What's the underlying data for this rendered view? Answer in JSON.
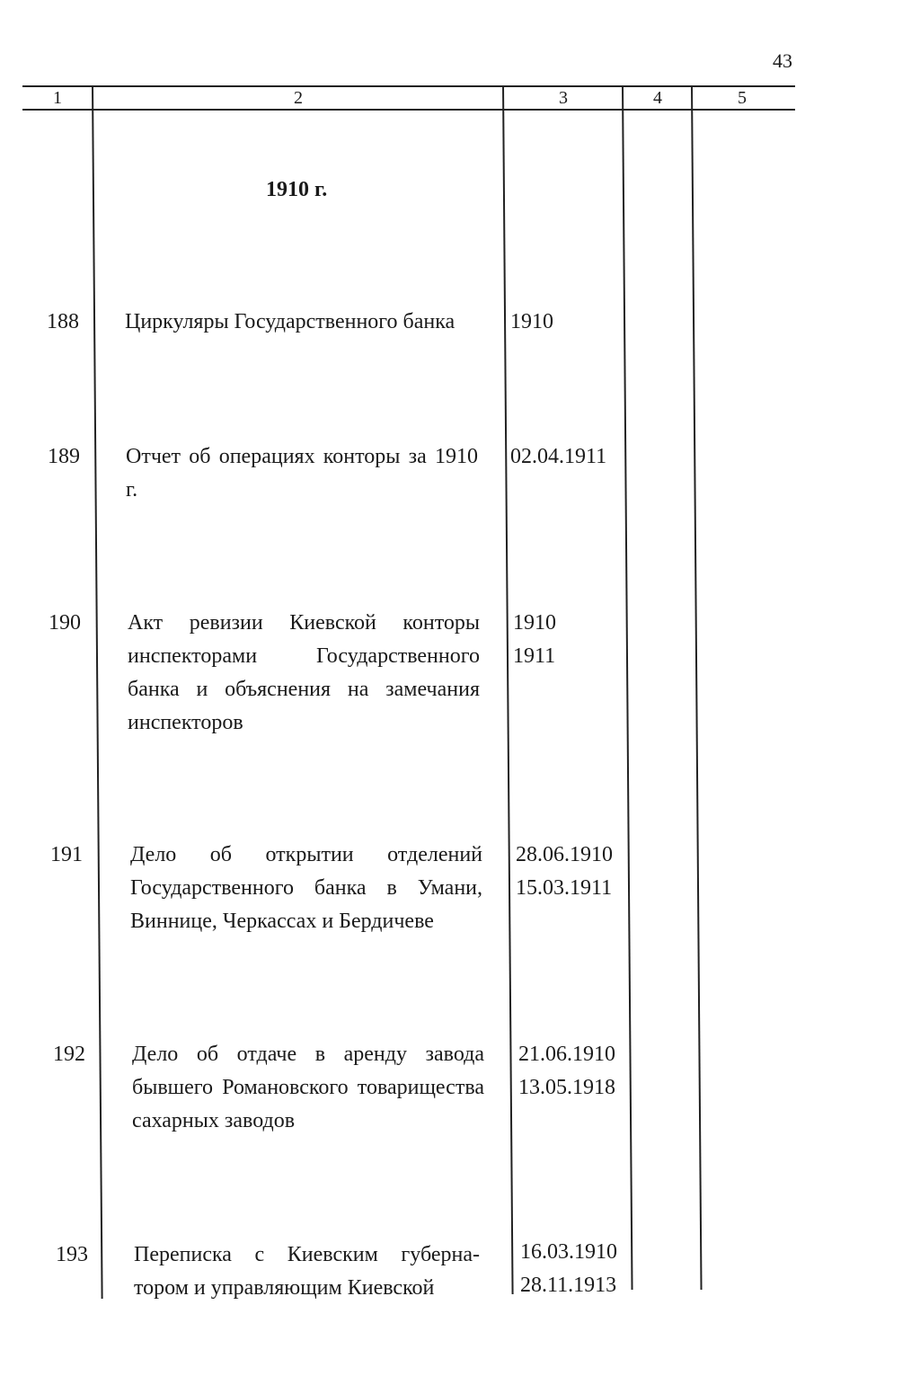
{
  "page_number": "43",
  "columns": [
    "1",
    "2",
    "3",
    "4",
    "5"
  ],
  "section_heading": "1910 г.",
  "rows": [
    {
      "num": "188",
      "title": "Циркуляры Государственного банка",
      "dates": [
        "1910"
      ]
    },
    {
      "num": "189",
      "title": "Отчет об операциях конторы за 1910 г.",
      "dates": [
        "02.04.1911"
      ]
    },
    {
      "num": "190",
      "title": "Акт ревизии Киевской конторы инспекторами Государственного банка и объяснения на замечания инспекторов",
      "dates": [
        "1910",
        "1911"
      ]
    },
    {
      "num": "191",
      "title": "Дело об открытии отделений Государственного банка в Умани, Виннице, Черкассах и Бердичеве",
      "dates": [
        "28.06.1910",
        "15.03.1911"
      ]
    },
    {
      "num": "192",
      "title": "Дело об отдаче в аренду завода бывшего Романовского товарищества сахарных заводов",
      "dates": [
        "21.06.1910",
        "13.05.1918"
      ]
    },
    {
      "num": "193",
      "title": "Переписка с Киевским губерна-тором и управляющим Киевской",
      "dates": [
        "16.03.1910",
        "28.11.1913"
      ]
    }
  ]
}
